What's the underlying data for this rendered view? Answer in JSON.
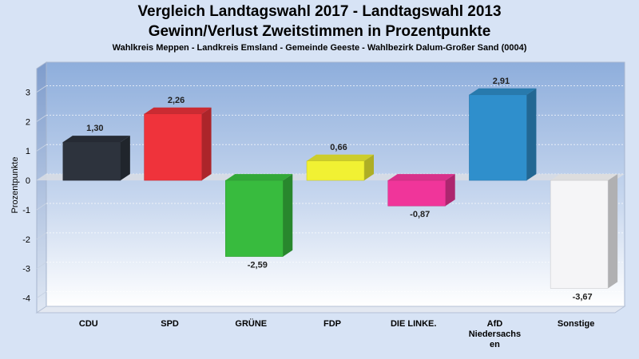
{
  "chart_data": {
    "type": "bar",
    "title": "Vergleich Landtagswahl 2017 - Landtagswahl 2013",
    "subtitle": "Gewinn/Verlust Zweitstimmen in Prozentpunkte",
    "subtitle2": "Wahlkreis Meppen - Landkreis Emsland - Gemeinde Geeste - Wahlbezirk Dalum-Großer Sand (0004)",
    "ylabel": "Prozentpunkte",
    "xlabel": "",
    "ylim": [
      -4.5,
      3.8
    ],
    "yticks": [
      3,
      2,
      1,
      0,
      -1,
      -2,
      -3,
      -4
    ],
    "ytick_labels": [
      "3",
      "2",
      "1",
      "0",
      "-1",
      "-2",
      "-3",
      "-4"
    ],
    "grid": true,
    "categories": [
      "CDU",
      "SPD",
      "GRÜNE",
      "FDP",
      "DIE LINKE.",
      "AfD Niedersachsen",
      "Sonstige"
    ],
    "category_display": [
      [
        "CDU"
      ],
      [
        "SPD"
      ],
      [
        "GRÜNE"
      ],
      [
        "FDP"
      ],
      [
        "DIE LINKE."
      ],
      [
        "AfD",
        "Niedersachs",
        "en"
      ],
      [
        "Sonstige"
      ]
    ],
    "values": [
      1.3,
      2.26,
      -2.59,
      0.66,
      -0.87,
      2.91,
      -3.67
    ],
    "value_labels": [
      "1,30",
      "2,26",
      "-2,59",
      "0,66",
      "-0,87",
      "2,91",
      "-3,67"
    ],
    "colors": [
      "#2d333d",
      "#ef333b",
      "#38bb3e",
      "#f1f133",
      "#f0359a",
      "#2f8fcc",
      "#f5f5f7"
    ]
  }
}
